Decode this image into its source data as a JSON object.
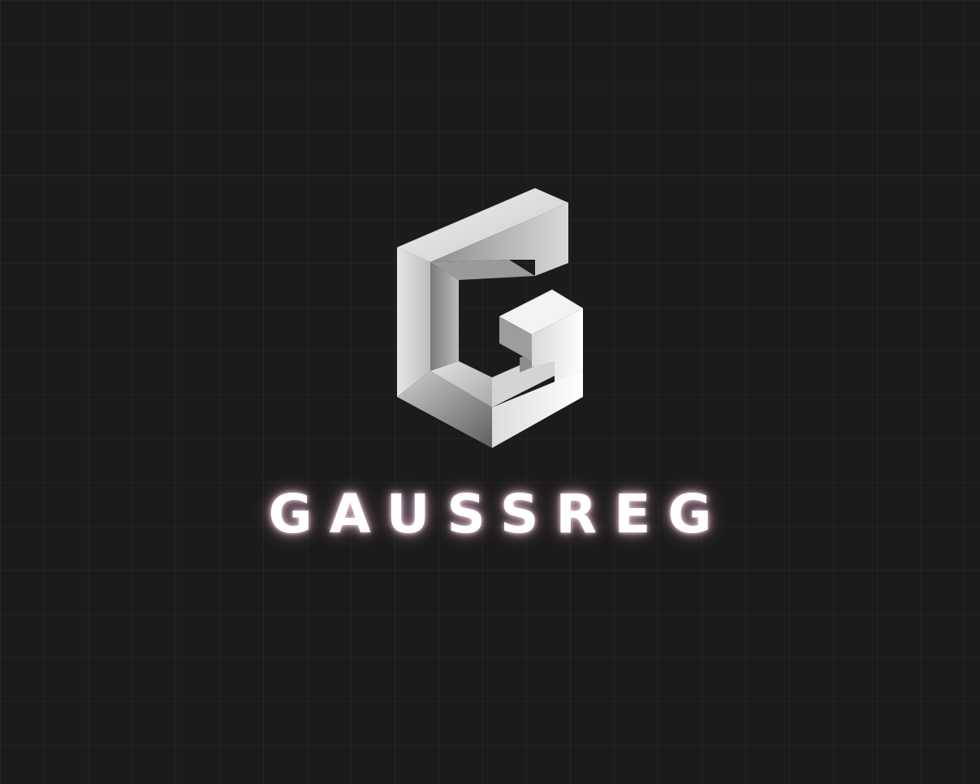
{
  "brand": {
    "name": "GAUSSREG",
    "logo_icon": "isometric-g-logo-icon"
  },
  "colors": {
    "background": "#1b1b1b",
    "text": "#ffffff",
    "glow": "#e8bcd4",
    "logo_light": "#f4f4f4",
    "logo_mid": "#b8b8b8",
    "logo_dark": "#6f6f6f"
  }
}
